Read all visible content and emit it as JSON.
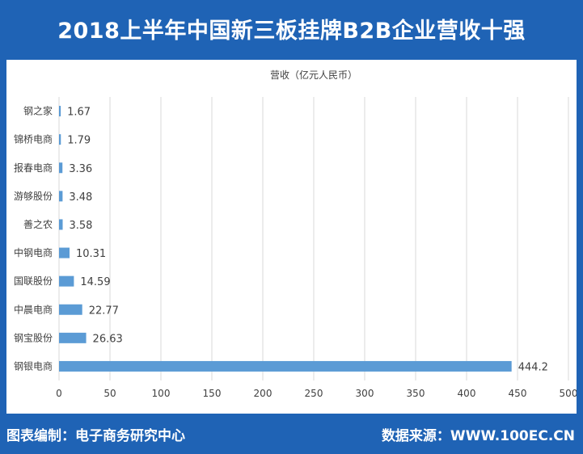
{
  "header": {
    "title": "2018上半年中国新三板挂牌B2B企业营收十强"
  },
  "footer": {
    "left": "图表编制：电子商务研究中心",
    "right": "数据来源：WWW.100EC.CN"
  },
  "colors": {
    "frame": "#1f63b5",
    "bar": "#5b9bd5",
    "grid": "#d9d9d9",
    "text": "#404040"
  },
  "chart_data": {
    "type": "bar",
    "orientation": "horizontal",
    "title": "营收（亿元人民币）",
    "categories": [
      "钢之家",
      "锦桥电商",
      "报春电商",
      "游够股份",
      "善之农",
      "中钢电商",
      "国联股份",
      "中晨电商",
      "钢宝股份",
      "钢银电商"
    ],
    "values": [
      1.67,
      1.79,
      3.36,
      3.48,
      3.58,
      10.31,
      14.59,
      22.77,
      26.63,
      444.2
    ],
    "value_labels": [
      "1.67",
      "1.79",
      "3.36",
      "3.48",
      "3.58",
      "10.31",
      "14.59",
      "22.77",
      "26.63",
      "444.2"
    ],
    "xlim": [
      0,
      500
    ],
    "xticks": [
      "0",
      "50",
      "100",
      "150",
      "200",
      "250",
      "300",
      "350",
      "400",
      "450",
      "500"
    ],
    "grid": true,
    "legend": "none"
  }
}
